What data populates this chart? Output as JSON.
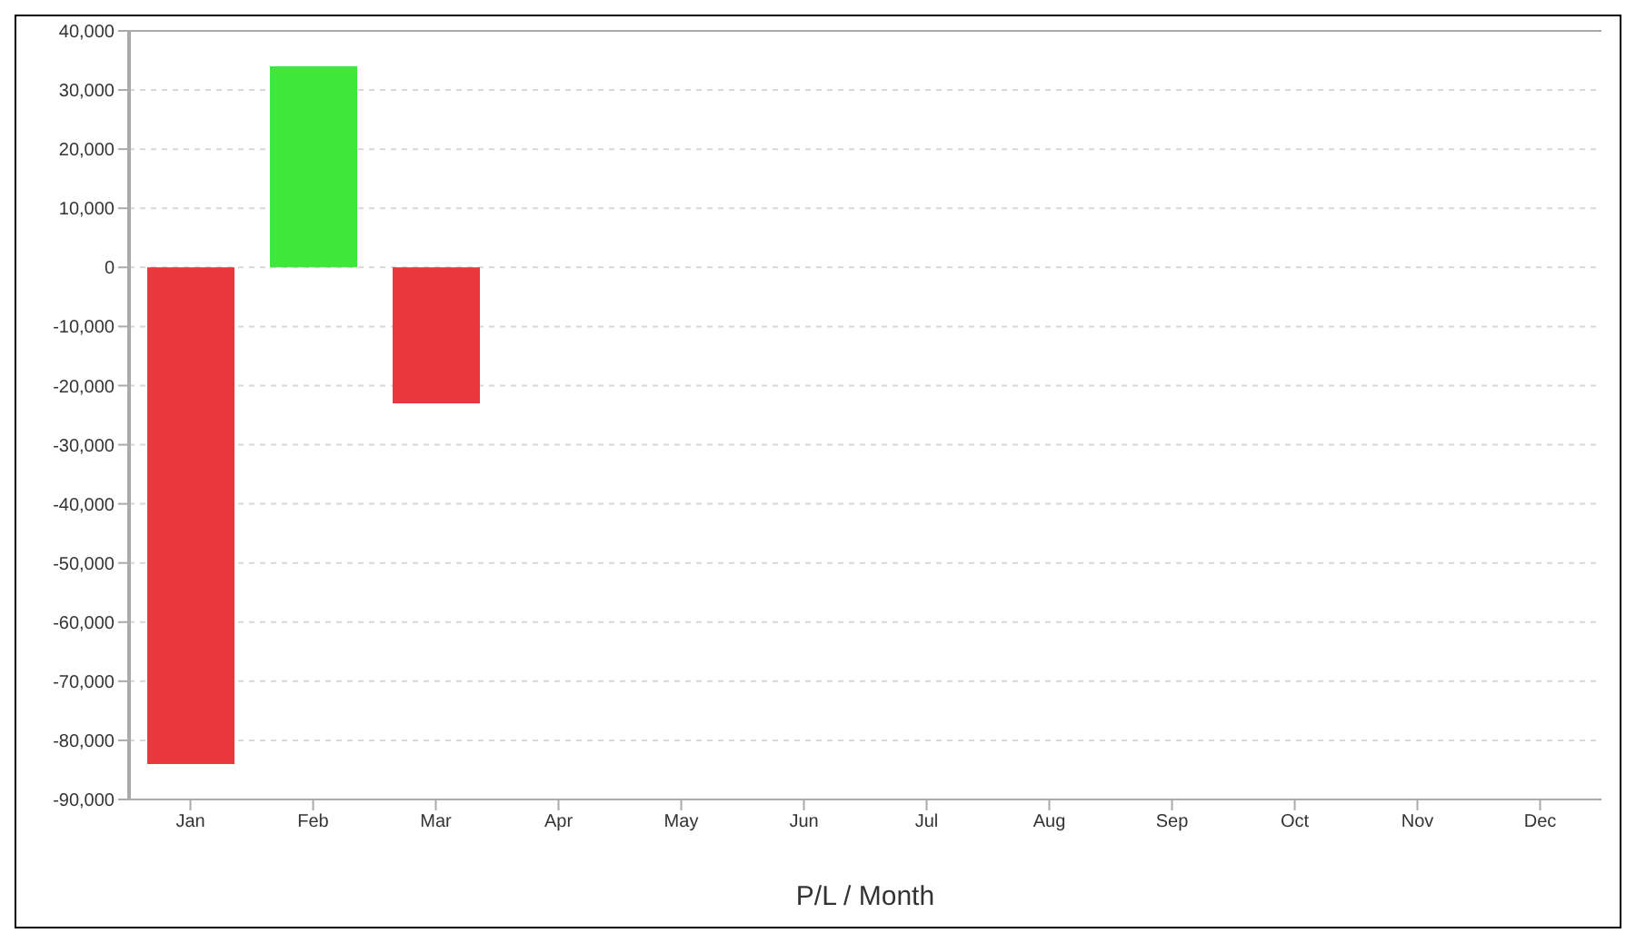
{
  "chart_data": {
    "type": "bar",
    "xlabel": "P/L / Month",
    "categories": [
      "Jan",
      "Feb",
      "Mar",
      "Apr",
      "May",
      "Jun",
      "Jul",
      "Aug",
      "Sep",
      "Oct",
      "Nov",
      "Dec"
    ],
    "values": [
      -84000,
      34000,
      -23000,
      null,
      null,
      null,
      null,
      null,
      null,
      null,
      null,
      null
    ],
    "colors": [
      "#e8383d",
      "#3ee83b",
      "#e8383d",
      "#e8383d",
      "#e8383d",
      "#e8383d",
      "#e8383d",
      "#e8383d",
      "#e8383d",
      "#e8383d",
      "#e8383d",
      "#e8383d"
    ],
    "ylim": [
      -90000,
      40000
    ],
    "yticks": [
      {
        "value": -90000,
        "label": "-90,000"
      },
      {
        "value": -80000,
        "label": "-80,000"
      },
      {
        "value": -70000,
        "label": "-70,000"
      },
      {
        "value": -60000,
        "label": "-60,000"
      },
      {
        "value": -50000,
        "label": "-50,000"
      },
      {
        "value": -40000,
        "label": "-40,000"
      },
      {
        "value": -30000,
        "label": "-30,000"
      },
      {
        "value": -20000,
        "label": "-20,000"
      },
      {
        "value": -10000,
        "label": "-10,000"
      },
      0,
      {
        "value": 10000,
        "label": "10,000"
      },
      {
        "value": 20000,
        "label": "20,000"
      },
      {
        "value": 30000,
        "label": "30,000"
      },
      {
        "value": 40000,
        "label": "40,000"
      }
    ],
    "grid": "y"
  }
}
